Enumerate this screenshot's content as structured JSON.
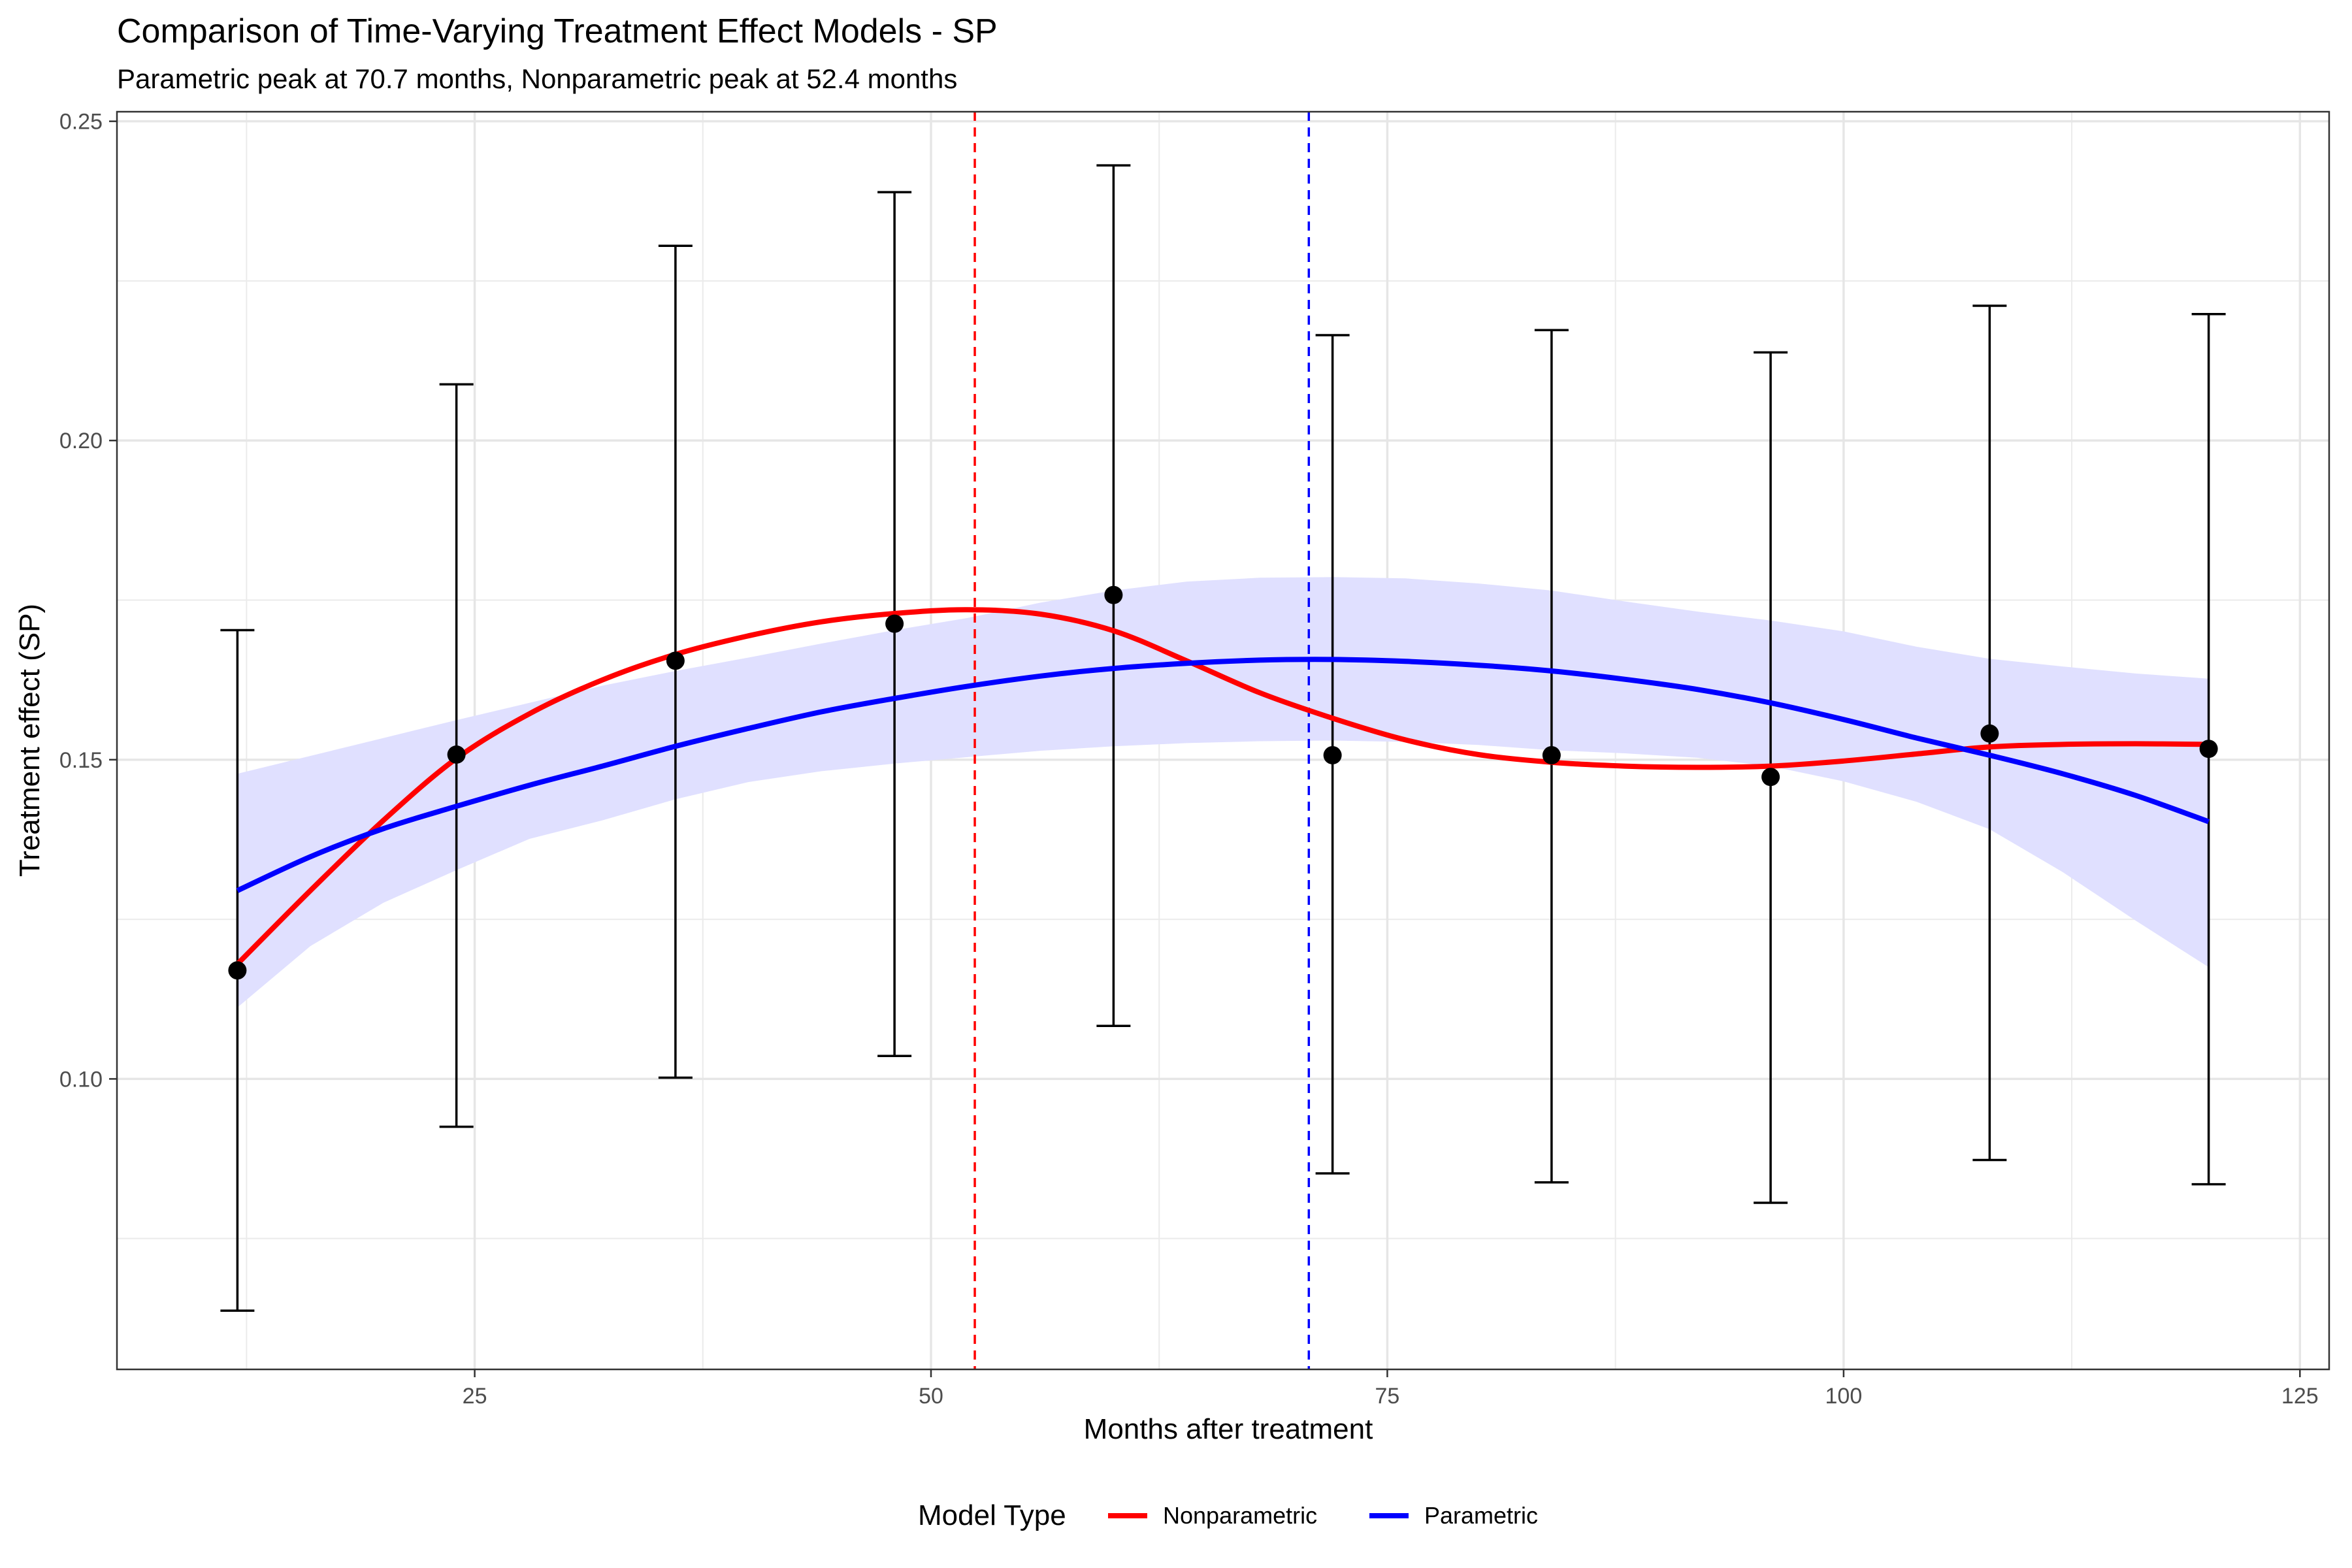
{
  "chart_data": {
    "type": "line",
    "title": "Comparison of Time-Varying Treatment Effect Models - SP",
    "subtitle": "Parametric peak at 70.7 months, Nonparametric peak at 52.4 months",
    "xlabel": "Months after treatment",
    "ylabel": "Treatment effect (SP)",
    "xlim": [
      5.4,
      126.6
    ],
    "ylim": [
      0.0545,
      0.2515
    ],
    "x_ticks": [
      25,
      50,
      75,
      100,
      125
    ],
    "x_tick_labels": [
      "25",
      "50",
      "75",
      "100",
      "125"
    ],
    "y_ticks": [
      0.1,
      0.15,
      0.2,
      0.25
    ],
    "y_tick_labels": [
      "0.10",
      "0.15",
      "0.20",
      "0.25"
    ],
    "grid": true,
    "legend": {
      "title": "Model Type",
      "position": "bottom",
      "entries": [
        {
          "label": "Nonparametric",
          "color": "#ff0000"
        },
        {
          "label": "Parametric",
          "color": "#0000ff"
        }
      ]
    },
    "point_estimates": {
      "x": [
        12,
        24,
        36,
        48,
        60,
        72,
        84,
        96,
        108,
        120
      ],
      "y": [
        0.117,
        0.1508,
        0.1655,
        0.1713,
        0.1758,
        0.1507,
        0.1507,
        0.1473,
        0.1541,
        0.1517
      ],
      "lower": [
        0.0637,
        0.0925,
        0.1002,
        0.1036,
        0.1083,
        0.0852,
        0.0838,
        0.0806,
        0.0873,
        0.0835
      ],
      "upper": [
        0.1703,
        0.2088,
        0.2305,
        0.2389,
        0.2431,
        0.2165,
        0.2173,
        0.2138,
        0.2211,
        0.2198
      ],
      "color": "#000000"
    },
    "series": [
      {
        "name": "Nonparametric",
        "color": "#ff0000",
        "x": [
          12,
          16,
          20,
          24,
          28,
          32,
          36,
          40,
          44,
          48,
          52,
          56,
          60,
          64,
          68,
          72,
          76,
          80,
          84,
          88,
          92,
          96,
          100,
          104,
          108,
          112,
          116,
          120
        ],
        "y": [
          0.118,
          0.1295,
          0.1405,
          0.1502,
          0.1572,
          0.1625,
          0.1665,
          0.1694,
          0.1716,
          0.1729,
          0.1735,
          0.1728,
          0.1702,
          0.1655,
          0.1605,
          0.1565,
          0.1531,
          0.1508,
          0.1496,
          0.149,
          0.1488,
          0.149,
          0.1498,
          0.1509,
          0.152,
          0.1524,
          0.1525,
          0.1524
        ]
      },
      {
        "name": "Parametric",
        "color": "#0000ff",
        "x": [
          12,
          16,
          20,
          24,
          28,
          32,
          36,
          40,
          44,
          48,
          52,
          56,
          60,
          64,
          68,
          72,
          76,
          80,
          84,
          88,
          92,
          96,
          100,
          104,
          108,
          112,
          116,
          120
        ],
        "y": [
          0.1295,
          0.1348,
          0.1392,
          0.1427,
          0.146,
          0.149,
          0.1521,
          0.1549,
          0.1575,
          0.1596,
          0.1615,
          0.1631,
          0.1643,
          0.1651,
          0.1656,
          0.1657,
          0.1654,
          0.1648,
          0.1639,
          0.1626,
          0.161,
          0.1589,
          0.1563,
          0.1534,
          0.1507,
          0.1478,
          0.1444,
          0.1403
        ],
        "ci_lower": [
          0.1112,
          0.1208,
          0.1276,
          0.1327,
          0.1376,
          0.1405,
          0.1438,
          0.1465,
          0.1482,
          0.1494,
          0.1504,
          0.1514,
          0.1521,
          0.1526,
          0.1529,
          0.153,
          0.1528,
          0.1523,
          0.1515,
          0.151,
          0.1503,
          0.149,
          0.1466,
          0.1434,
          0.1391,
          0.1324,
          0.1248,
          0.1175
        ],
        "ci_upper": [
          0.1478,
          0.1506,
          0.1534,
          0.1562,
          0.1589,
          0.1616,
          0.1639,
          0.166,
          0.1682,
          0.1703,
          0.1722,
          0.1746,
          0.1765,
          0.1779,
          0.1785,
          0.1786,
          0.1784,
          0.1776,
          0.1765,
          0.1748,
          0.1732,
          0.1718,
          0.1701,
          0.1677,
          0.1658,
          0.1646,
          0.1635,
          0.1627
        ],
        "ci_fill": "#e0e0ff"
      }
    ],
    "reference_lines": [
      {
        "x": 52.4,
        "color": "#ff0000",
        "style": "dashed"
      },
      {
        "x": 70.7,
        "color": "#0000ff",
        "style": "dashed"
      }
    ]
  }
}
